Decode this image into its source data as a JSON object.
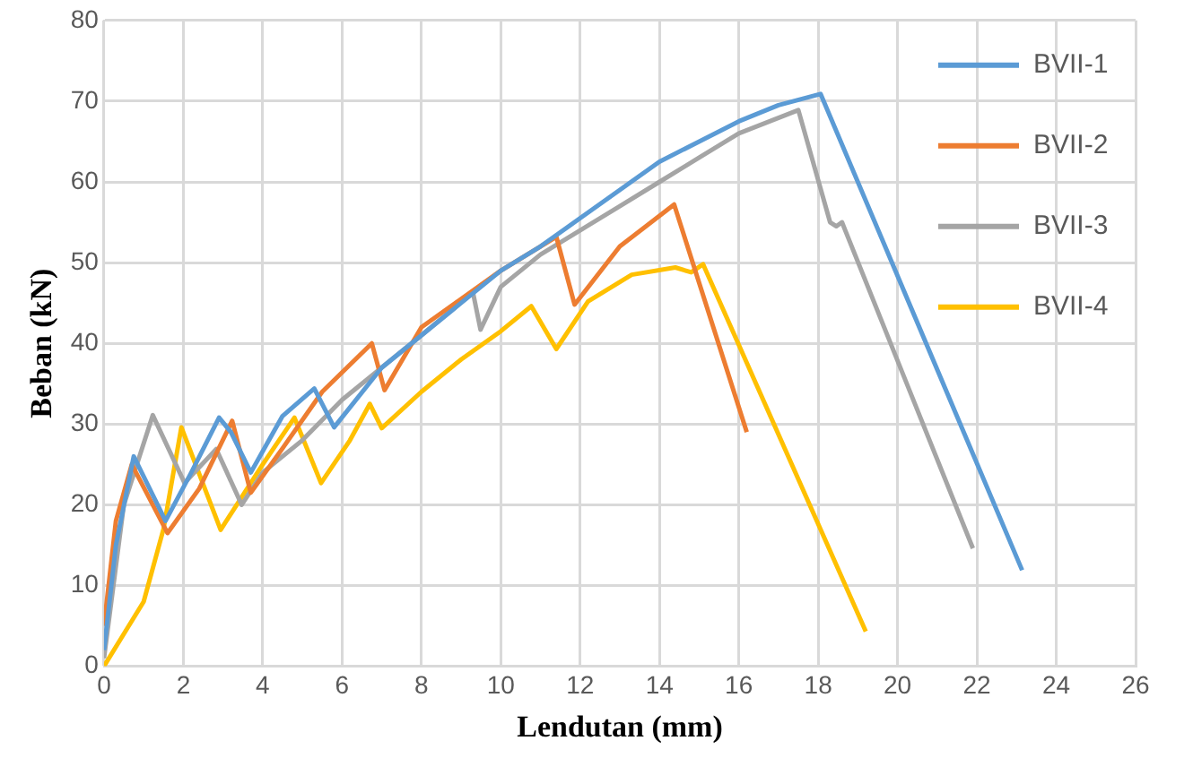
{
  "chart_data": {
    "type": "line",
    "xlabel": "Lendutan (mm)",
    "ylabel": "Beban (kN)",
    "xlim": [
      0,
      26
    ],
    "xticks": [
      0,
      2,
      4,
      6,
      8,
      10,
      12,
      14,
      16,
      18,
      20,
      22,
      24,
      26
    ],
    "ylim": [
      0,
      80
    ],
    "yticks": [
      0,
      10,
      20,
      30,
      40,
      50,
      60,
      70,
      80
    ],
    "grid": true,
    "legend": "top right",
    "marker": "none",
    "line_style": "solid",
    "series": [
      {
        "name": "BVII-1",
        "color": "#5b9bd5",
        "x": [
          0,
          0.3,
          0.75,
          1.55,
          2.2,
          2.9,
          3.2,
          3.7,
          4.5,
          5.3,
          5.8,
          7,
          8,
          9,
          10,
          11,
          12,
          13,
          14,
          15,
          16,
          17,
          18.06,
          23.14
        ],
        "values": [
          2,
          15,
          26,
          18,
          24,
          30.8,
          29,
          24,
          31,
          34.4,
          29.6,
          37,
          41,
          45,
          49,
          52,
          55.5,
          59,
          62.5,
          65,
          67.5,
          69.5,
          70.9,
          11.9
        ]
      },
      {
        "name": "BVII-2",
        "color": "#ed7d31",
        "x": [
          0,
          0.3,
          0.7,
          1.6,
          2.4,
          3.23,
          3.7,
          4.5,
          5.5,
          6.75,
          7.07,
          8,
          10,
          11.4,
          11.86,
          13,
          14.37,
          16.2
        ],
        "values": [
          5,
          18,
          25,
          16.5,
          22,
          30.4,
          21.5,
          27,
          34,
          40,
          34.2,
          42,
          49,
          53.2,
          44.8,
          52,
          57.2,
          29
        ]
      },
      {
        "name": "BVII-3",
        "color": "#a5a5a5",
        "x": [
          0,
          0.5,
          1.23,
          2.03,
          2.83,
          3.47,
          4,
          5,
          6,
          7,
          8,
          9.3,
          9.49,
          10,
          11,
          12,
          13,
          14,
          15,
          16,
          17.5,
          18.3,
          18.46,
          18.6,
          21.9
        ],
        "values": [
          1,
          20,
          31.1,
          22.7,
          26.9,
          20,
          24,
          28,
          33,
          37,
          41,
          46.3,
          41.7,
          47,
          51,
          54,
          57,
          60,
          63,
          66,
          68.9,
          55,
          54.5,
          55,
          14.6
        ]
      },
      {
        "name": "BVII-4",
        "color": "#ffc000",
        "x": [
          0,
          0.5,
          1,
          1.5,
          1.95,
          2.94,
          4,
          4.8,
          5.47,
          6.2,
          6.7,
          7,
          8,
          9,
          10,
          10.77,
          11.4,
          12.2,
          13.3,
          14.4,
          14.8,
          15.1,
          19.2
        ],
        "values": [
          0,
          4,
          8,
          17,
          29.6,
          16.9,
          25,
          30.8,
          22.7,
          28,
          32.5,
          29.5,
          34,
          38,
          41.5,
          44.6,
          39.3,
          45.2,
          48.5,
          49.4,
          48.8,
          49.8,
          4.3
        ]
      }
    ]
  }
}
